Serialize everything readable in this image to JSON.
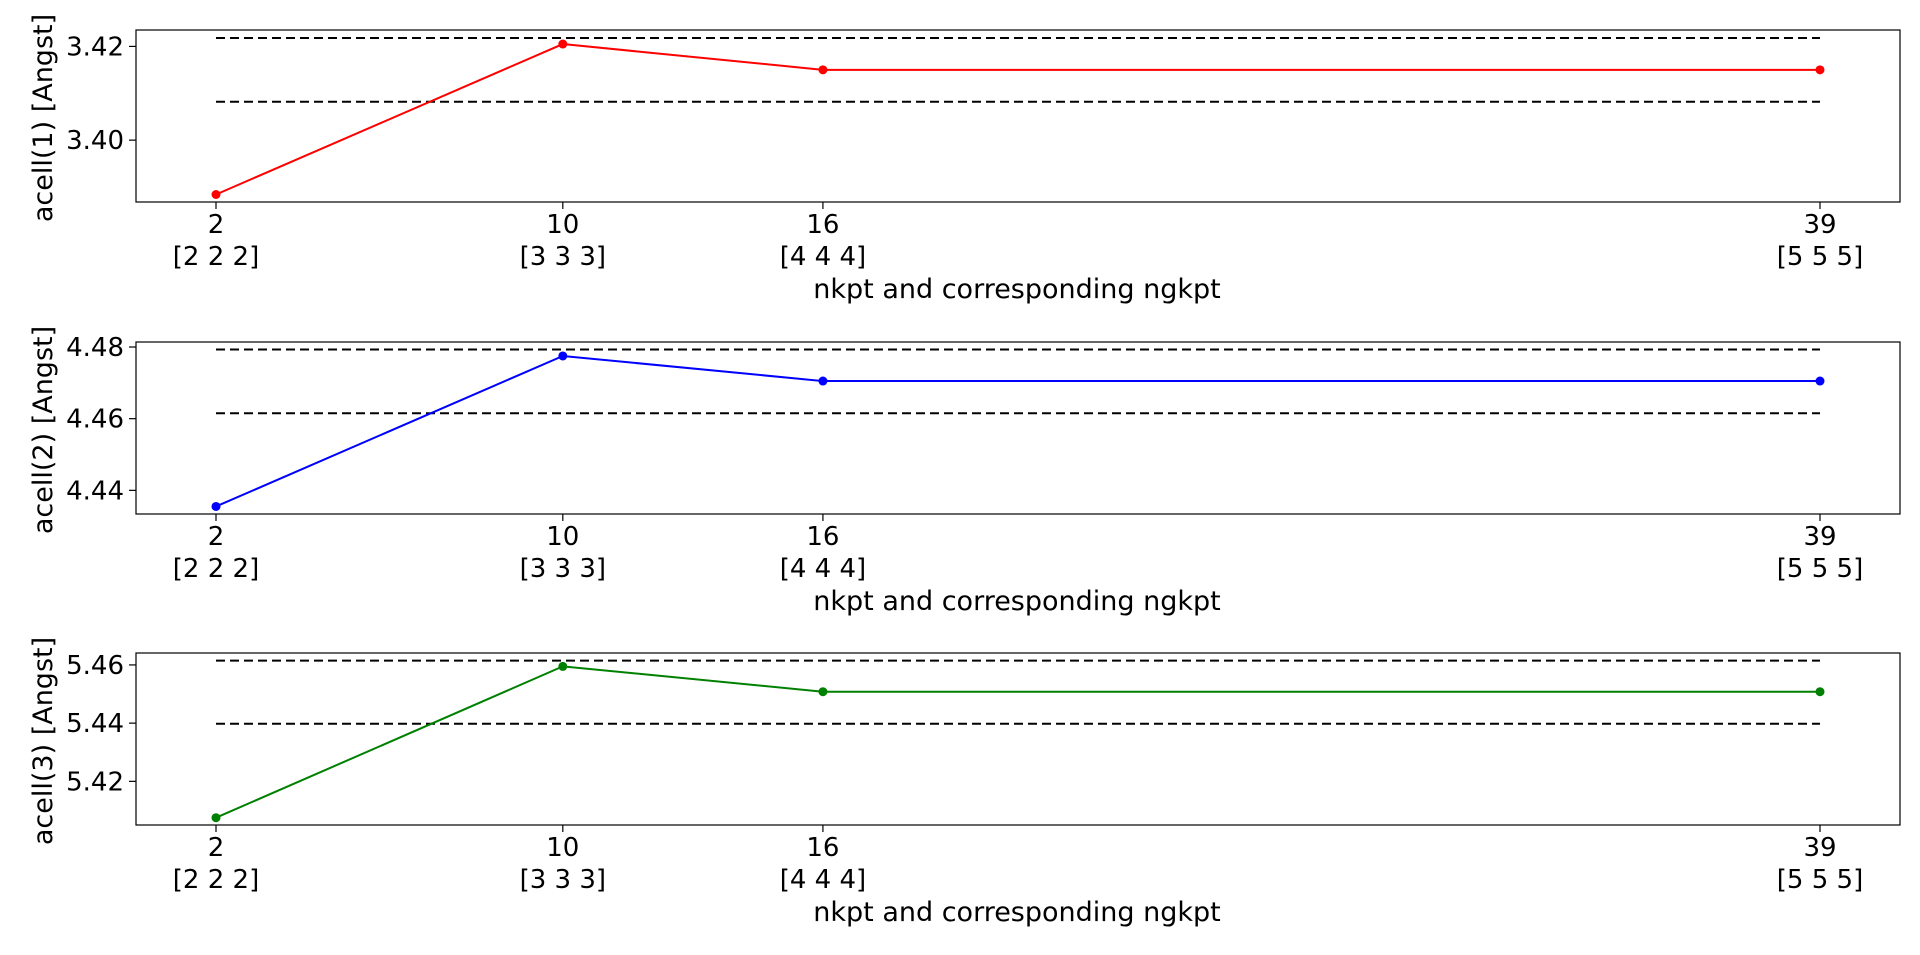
{
  "chart_data": [
    {
      "type": "line",
      "xlabel": "nkpt and corresponding ngkpt",
      "ylabel": "acell(1) [Angst]",
      "x": [
        2,
        10,
        16,
        39
      ],
      "x_tick_labels": [
        "2",
        "10",
        "16",
        "39"
      ],
      "x_secondary_labels": [
        "[2 2 2]",
        "[3 3 3]",
        "[4 4 4]",
        "[5 5 5]"
      ],
      "series": [
        {
          "values": [
            3.3884,
            3.4205,
            3.415,
            3.415
          ],
          "color": "#ff0000"
        }
      ],
      "reference_lines": [
        3.4218,
        3.4082
      ],
      "y_ticks": [
        3.4,
        3.42
      ],
      "y_tick_labels": [
        "3.40",
        "3.42"
      ],
      "ylim": [
        3.3868,
        3.4235
      ],
      "grid": false
    },
    {
      "type": "line",
      "xlabel": "nkpt and corresponding ngkpt",
      "ylabel": "acell(2) [Angst]",
      "x": [
        2,
        10,
        16,
        39
      ],
      "x_tick_labels": [
        "2",
        "10",
        "16",
        "39"
      ],
      "x_secondary_labels": [
        "[2 2 2]",
        "[3 3 3]",
        "[4 4 4]",
        "[5 5 5]"
      ],
      "series": [
        {
          "values": [
            4.4355,
            4.4775,
            4.4705,
            4.4705
          ],
          "color": "#0000ff"
        }
      ],
      "reference_lines": [
        4.4793,
        4.4615
      ],
      "y_ticks": [
        4.44,
        4.46,
        4.48
      ],
      "y_tick_labels": [
        "4.44",
        "4.46",
        "4.48"
      ],
      "ylim": [
        4.4334,
        4.4814
      ],
      "grid": false
    },
    {
      "type": "line",
      "xlabel": "nkpt and corresponding ngkpt",
      "ylabel": "acell(3) [Angst]",
      "x": [
        2,
        10,
        16,
        39
      ],
      "x_tick_labels": [
        "2",
        "10",
        "16",
        "39"
      ],
      "x_secondary_labels": [
        "[2 2 2]",
        "[3 3 3]",
        "[4 4 4]",
        "[5 5 5]"
      ],
      "series": [
        {
          "values": [
            5.4075,
            5.4595,
            5.4508,
            5.4508
          ],
          "color": "#008000"
        }
      ],
      "reference_lines": [
        5.4615,
        5.4398
      ],
      "y_ticks": [
        5.42,
        5.44,
        5.46
      ],
      "y_tick_labels": [
        "5.42",
        "5.44",
        "5.46"
      ],
      "ylim": [
        5.405,
        5.4641
      ],
      "grid": false
    }
  ]
}
